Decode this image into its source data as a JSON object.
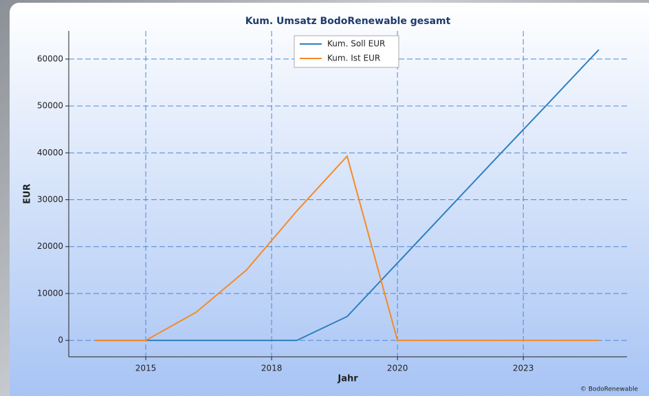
{
  "chart_data": {
    "type": "line",
    "title": "Kum. Umsatz BodoRenewable gesamt",
    "xlabel": "Jahr",
    "ylabel": "EUR",
    "credit": "© BodoRenewable",
    "x": [
      2014,
      2015,
      2016,
      2017,
      2018,
      2019,
      2020,
      2021,
      2022,
      2023,
      2024
    ],
    "series": [
      {
        "name": "Kum. Soll EUR",
        "color": "#2e7fc0",
        "values": [
          0,
          0,
          0,
          0,
          0,
          5100,
          16500,
          27900,
          39300,
          50600,
          62000
        ]
      },
      {
        "name": "Kum. Ist EUR",
        "color": "#f58a24",
        "values": [
          0,
          0,
          6000,
          15000,
          27600,
          39300,
          0,
          0,
          0,
          0,
          0
        ]
      }
    ],
    "xlim": [
      2013.47,
      2024.56
    ],
    "ylim": [
      -3500,
      66000
    ],
    "xticks": [
      2015,
      {
        "value": 2017.5,
        "label": "2018"
      },
      2020,
      {
        "value": 2022.5,
        "label": "2023"
      }
    ],
    "yticks": [
      0,
      10000,
      20000,
      30000,
      40000,
      50000,
      60000
    ],
    "grid": true,
    "legend": "top"
  }
}
